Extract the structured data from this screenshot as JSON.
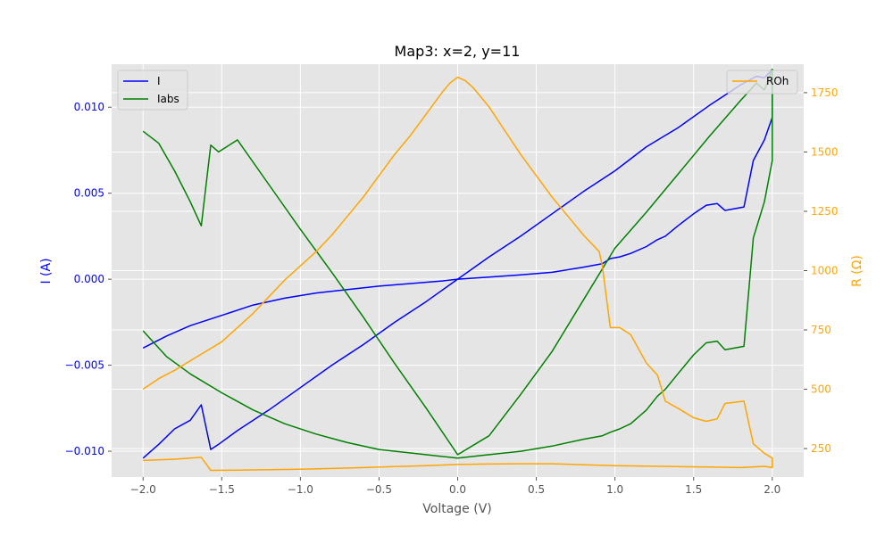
{
  "chart_data": {
    "type": "line",
    "title": "Map3: x=2, y=11",
    "xlabel": "Voltage (V)",
    "ylabel_left": "I (A)",
    "ylabel_right": "R (Ω)",
    "xlim": [
      -2.2,
      2.2
    ],
    "ylim_left": [
      -0.0115,
      0.0125
    ],
    "ylim_right": [
      130,
      1870
    ],
    "x_ticks": [
      -2.0,
      -1.5,
      -1.0,
      -0.5,
      0.0,
      0.5,
      1.0,
      1.5,
      2.0
    ],
    "x_tick_labels": [
      "−2.0",
      "−1.5",
      "−1.0",
      "−0.5",
      "0.0",
      "0.5",
      "1.0",
      "1.5",
      "2.0"
    ],
    "left_ticks": [
      -0.01,
      -0.005,
      0.0,
      0.005,
      0.01
    ],
    "left_tick_labels": [
      "−0.010",
      "−0.005",
      "0.000",
      "0.005",
      "0.010"
    ],
    "right_ticks": [
      250,
      500,
      750,
      1000,
      1250,
      1500,
      1750
    ],
    "right_tick_labels": [
      "250",
      "500",
      "750",
      "1000",
      "1250",
      "1500",
      "1750"
    ],
    "grid": true,
    "legend_left": {
      "placement": "top-left",
      "entries": [
        "I",
        "Iabs"
      ]
    },
    "legend_right": {
      "placement": "top-right",
      "entries": [
        "ROh"
      ]
    },
    "colors": {
      "I": "#0000ff",
      "Iabs": "#008000",
      "ROh": "#ffa500",
      "left_axis": "#0000ff",
      "right_axis": "#ffa500",
      "background": "#e5e5e5",
      "grid": "#ffffff"
    },
    "series": [
      {
        "name": "I",
        "axis": "left",
        "x": [
          -2.0,
          -1.85,
          -1.7,
          -1.5,
          -1.3,
          -1.1,
          -0.9,
          -0.7,
          -0.5,
          -0.3,
          -0.1,
          0.0,
          0.2,
          0.4,
          0.6,
          0.8,
          0.92,
          0.97,
          1.03,
          1.1,
          1.2,
          1.27,
          1.32,
          1.4,
          1.5,
          1.58,
          1.65,
          1.7,
          1.82,
          1.88,
          1.95,
          2.0,
          2.0,
          1.95,
          1.9,
          1.8,
          1.6,
          1.4,
          1.2,
          1.0,
          0.8,
          0.6,
          0.4,
          0.2,
          0.0,
          -0.2,
          -0.4,
          -0.6,
          -0.8,
          -1.0,
          -1.2,
          -1.4,
          -1.52,
          -1.57,
          -1.63,
          -1.7,
          -1.8,
          -1.9,
          -2.0
        ],
        "y": [
          -0.004,
          -0.0033,
          -0.0027,
          -0.0021,
          -0.0015,
          -0.0011,
          -0.0008,
          -0.0006,
          -0.0004,
          -0.00025,
          -0.0001,
          0.0,
          0.00012,
          0.00025,
          0.0004,
          0.0007,
          0.0009,
          0.0012,
          0.0013,
          0.0015,
          0.0019,
          0.0023,
          0.0025,
          0.0031,
          0.0038,
          0.0043,
          0.0044,
          0.004,
          0.0042,
          0.0069,
          0.0081,
          0.0094,
          0.0122,
          0.0117,
          0.0118,
          0.0113,
          0.0101,
          0.0088,
          0.0077,
          0.0063,
          0.0051,
          0.0038,
          0.0025,
          0.0013,
          0.0,
          -0.0013,
          -0.0025,
          -0.0038,
          -0.005,
          -0.0063,
          -0.0076,
          -0.0088,
          -0.0096,
          -0.0099,
          -0.0073,
          -0.0082,
          -0.0087,
          -0.0096,
          -0.0104
        ]
      },
      {
        "name": "Iabs",
        "axis": "left",
        "x": [
          -2.0,
          -1.85,
          -1.7,
          -1.5,
          -1.3,
          -1.1,
          -0.9,
          -0.7,
          -0.5,
          -0.3,
          -0.1,
          0.0,
          0.2,
          0.4,
          0.6,
          0.8,
          0.92,
          0.97,
          1.03,
          1.1,
          1.2,
          1.27,
          1.32,
          1.4,
          1.5,
          1.58,
          1.65,
          1.7,
          1.82,
          1.88,
          1.95,
          2.0,
          2.0,
          1.95,
          1.9,
          1.8,
          1.6,
          1.4,
          1.2,
          1.0,
          0.8,
          0.6,
          0.4,
          0.2,
          0.0,
          -0.2,
          -0.4,
          -0.6,
          -0.8,
          -1.0,
          -1.2,
          -1.4,
          -1.52,
          -1.57,
          -1.63,
          -1.7,
          -1.8,
          -1.9,
          -2.0
        ],
        "y": [
          -0.003,
          -0.0045,
          -0.0055,
          -0.0066,
          -0.0076,
          -0.0084,
          -0.009,
          -0.0095,
          -0.0099,
          -0.0101,
          -0.0103,
          -0.0104,
          -0.0102,
          -0.01,
          -0.0097,
          -0.0093,
          -0.0091,
          -0.0089,
          -0.0087,
          -0.0084,
          -0.0076,
          -0.0068,
          -0.0064,
          -0.0055,
          -0.0044,
          -0.0037,
          -0.0036,
          -0.0041,
          -0.0039,
          0.0024,
          0.0045,
          0.0069,
          0.0122,
          0.011,
          0.0114,
          0.0104,
          0.0083,
          0.0061,
          0.0039,
          0.0018,
          -0.0012,
          -0.0042,
          -0.0067,
          -0.0091,
          -0.0102,
          -0.0075,
          -0.0049,
          -0.0022,
          0.0004,
          0.0029,
          0.0055,
          0.0081,
          0.0074,
          0.0078,
          0.0031,
          0.0045,
          0.0063,
          0.0079,
          0.0086
        ]
      },
      {
        "name": "ROh",
        "axis": "right",
        "x": [
          -2.0,
          -1.9,
          -1.8,
          -1.7,
          -1.6,
          -1.5,
          -1.4,
          -1.3,
          -1.2,
          -1.1,
          -1.0,
          -0.9,
          -0.8,
          -0.7,
          -0.6,
          -0.5,
          -0.4,
          -0.3,
          -0.2,
          -0.1,
          -0.05,
          0.0,
          0.05,
          0.1,
          0.2,
          0.3,
          0.4,
          0.5,
          0.6,
          0.7,
          0.8,
          0.9,
          0.92,
          0.97,
          1.03,
          1.1,
          1.2,
          1.27,
          1.32,
          1.4,
          1.5,
          1.58,
          1.65,
          1.7,
          1.82,
          1.88,
          1.95,
          2.0,
          2.0,
          1.95,
          1.8,
          1.6,
          1.4,
          1.2,
          1.0,
          0.8,
          0.6,
          0.4,
          0.2,
          0.0,
          -0.2,
          -0.4,
          -0.6,
          -0.8,
          -1.0,
          -1.2,
          -1.4,
          -1.57,
          -1.63,
          -1.8,
          -2.0
        ],
        "y": [
          500,
          545,
          580,
          620,
          660,
          700,
          760,
          820,
          890,
          960,
          1020,
          1080,
          1150,
          1230,
          1310,
          1400,
          1490,
          1570,
          1660,
          1750,
          1790,
          1815,
          1800,
          1770,
          1690,
          1590,
          1490,
          1400,
          1310,
          1230,
          1150,
          1080,
          1020,
          760,
          760,
          730,
          610,
          560,
          450,
          420,
          380,
          365,
          375,
          440,
          450,
          270,
          230,
          210,
          170,
          175,
          170,
          172,
          174,
          176,
          178,
          182,
          186,
          186,
          185,
          183,
          178,
          174,
          170,
          166,
          163,
          161,
          159,
          158,
          213,
          205,
          200
        ]
      }
    ]
  }
}
